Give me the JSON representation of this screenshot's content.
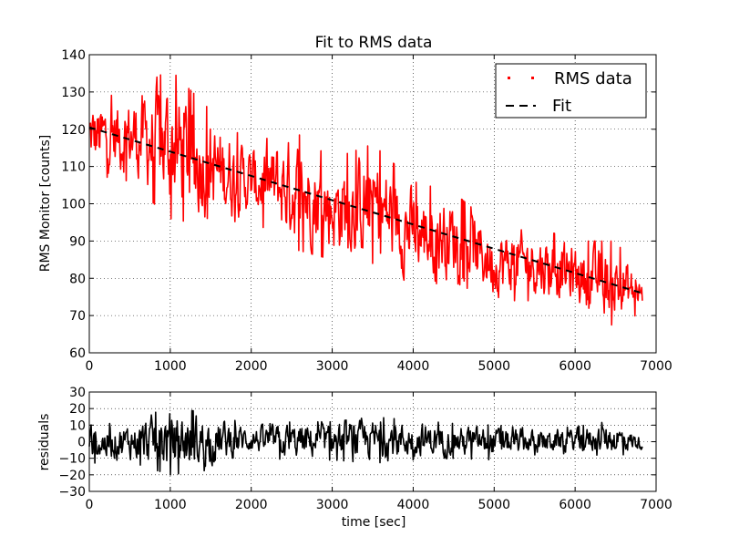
{
  "chart_data": [
    {
      "type": "line",
      "title": "Fit to RMS data",
      "xlabel": "",
      "ylabel": "RMS Monitor [counts]",
      "xlim": [
        0,
        7000
      ],
      "ylim": [
        60,
        140
      ],
      "x_ticks": [
        0,
        1000,
        2000,
        3000,
        4000,
        5000,
        6000,
        7000
      ],
      "y_ticks": [
        60,
        70,
        80,
        90,
        100,
        110,
        120,
        130,
        140
      ],
      "x_tick_labels": [
        "0",
        "1000",
        "2000",
        "3000",
        "4000",
        "5000",
        "6000",
        "7000"
      ],
      "y_tick_labels": [
        "60",
        "70",
        "80",
        "90",
        "100",
        "110",
        "120",
        "130",
        "140"
      ],
      "grid": true,
      "legend_position": "top-right",
      "series": [
        {
          "name": "RMS data",
          "style": "red noisy trace",
          "color": "#ff0000",
          "x_start": 0,
          "x_end": 6830,
          "envelope": [
            {
              "x": 0,
              "min": 108,
              "max": 128
            },
            {
              "x": 500,
              "min": 106,
              "max": 130
            },
            {
              "x": 1000,
              "min": 96,
              "max": 136
            },
            {
              "x": 1500,
              "min": 94,
              "max": 125
            },
            {
              "x": 2000,
              "min": 96,
              "max": 116
            },
            {
              "x": 2500,
              "min": 88,
              "max": 120
            },
            {
              "x": 3000,
              "min": 85,
              "max": 112
            },
            {
              "x": 3500,
              "min": 84,
              "max": 116
            },
            {
              "x": 4000,
              "min": 78,
              "max": 106
            },
            {
              "x": 4500,
              "min": 79,
              "max": 103
            },
            {
              "x": 5000,
              "min": 74,
              "max": 94
            },
            {
              "x": 5500,
              "min": 74,
              "max": 94
            },
            {
              "x": 6000,
              "min": 72,
              "max": 90
            },
            {
              "x": 6500,
              "min": 67,
              "max": 90
            },
            {
              "x": 6830,
              "min": 71,
              "max": 80
            }
          ]
        },
        {
          "name": "Fit",
          "style": "black dashed line",
          "color": "#000000",
          "x": [
            0,
            6830
          ],
          "y": [
            120.5,
            76
          ]
        }
      ]
    },
    {
      "type": "line",
      "title": "",
      "xlabel": "time [sec]",
      "ylabel": "residuals",
      "xlim": [
        0,
        7000
      ],
      "ylim": [
        -30,
        30
      ],
      "x_ticks": [
        0,
        1000,
        2000,
        3000,
        4000,
        5000,
        6000,
        7000
      ],
      "y_ticks": [
        -30,
        -20,
        -10,
        0,
        10,
        20,
        30
      ],
      "x_tick_labels": [
        "0",
        "1000",
        "2000",
        "3000",
        "4000",
        "5000",
        "6000",
        "7000"
      ],
      "y_tick_labels": [
        "−30",
        "−20",
        "−10",
        "0",
        "10",
        "20",
        "30"
      ],
      "grid": true,
      "series": [
        {
          "style": "black noisy trace",
          "color": "#000000",
          "x_start": 0,
          "x_end": 6830,
          "envelope": [
            {
              "x": 0,
              "min": -13,
              "max": 10
            },
            {
              "x": 500,
              "min": -12,
              "max": 12
            },
            {
              "x": 1000,
              "min": -20,
              "max": 21
            },
            {
              "x": 1500,
              "min": -17,
              "max": 17
            },
            {
              "x": 2000,
              "min": -7,
              "max": 10
            },
            {
              "x": 2500,
              "min": -12,
              "max": 12
            },
            {
              "x": 3000,
              "min": -11,
              "max": 12
            },
            {
              "x": 3500,
              "min": -13,
              "max": 15
            },
            {
              "x": 4000,
              "min": -11,
              "max": 13
            },
            {
              "x": 4500,
              "min": -10,
              "max": 11
            },
            {
              "x": 5000,
              "min": -11,
              "max": 10
            },
            {
              "x": 5500,
              "min": -8,
              "max": 8
            },
            {
              "x": 6000,
              "min": -7,
              "max": 9
            },
            {
              "x": 6500,
              "min": -9,
              "max": 13
            },
            {
              "x": 6830,
              "min": -5,
              "max": 3
            }
          ]
        }
      ]
    }
  ]
}
